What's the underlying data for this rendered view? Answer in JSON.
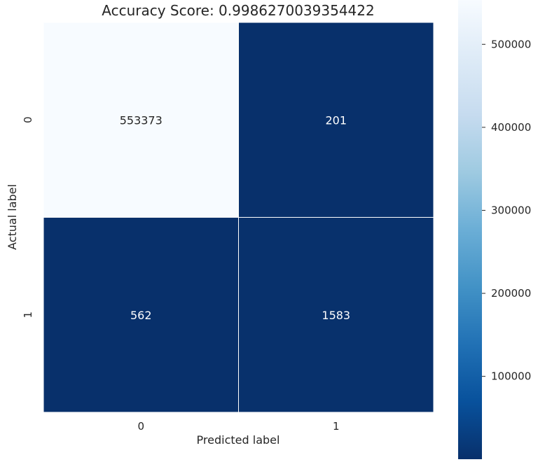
{
  "chart_data": {
    "type": "heatmap",
    "title": "Accuracy Score: 0.9986270039354422",
    "xlabel": "Predicted label",
    "ylabel": "Actual label",
    "x_categories": [
      "0",
      "1"
    ],
    "y_categories": [
      "0",
      "1"
    ],
    "matrix": [
      [
        553373,
        201
      ],
      [
        562,
        1583
      ]
    ],
    "cell_labels": [
      [
        "553373",
        "201"
      ],
      [
        "562",
        "1583"
      ]
    ],
    "colormap": "Blues",
    "colorbar": {
      "ticks": [
        100000,
        200000,
        300000,
        400000,
        500000
      ],
      "tick_labels": [
        "100000",
        "200000",
        "300000",
        "400000",
        "500000"
      ],
      "range": [
        201,
        553373
      ]
    },
    "grid": false,
    "cell_border_color": "#ffffff"
  }
}
